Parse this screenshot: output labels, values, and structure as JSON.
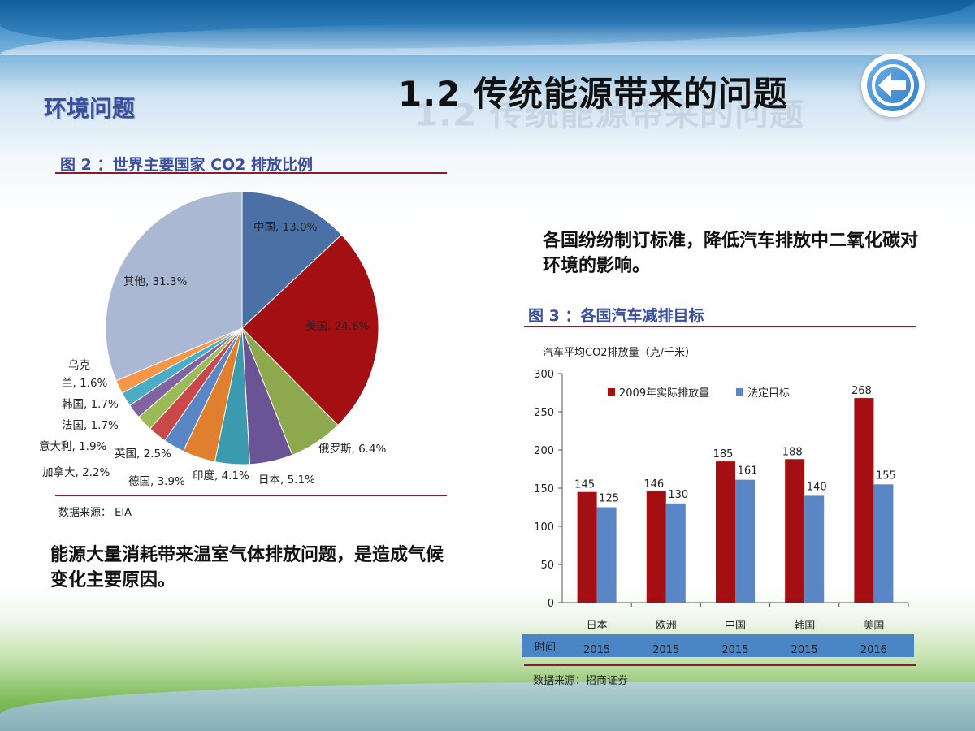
{
  "title": "1.2  传统能源带来的问题",
  "section": "环境问题",
  "left": {
    "fig_title": "图 2 ：世界主要国家 CO2 排放比例",
    "source": "数据来源：  EIA",
    "body": "能源大量消耗带来温室气体排放问题，是造成气候变化主要原因。"
  },
  "right": {
    "body": "各国纷纷制订标准，降低汽车排放中二氧化碳对环境的影响。",
    "fig_title": "图 3 ：各国汽车减排目标",
    "source": "数据来源：招商证券",
    "time_label": "时间"
  },
  "chart_data": [
    {
      "type": "pie",
      "title": "图 2 ：世界主要国家 CO2 排放比例",
      "labels": [
        "中国",
        "美国",
        "俄罗斯",
        "日本",
        "印度",
        "德国",
        "英国",
        "加拿大",
        "意大利",
        "法国",
        "韩国",
        "乌克兰",
        "其他"
      ],
      "values": [
        13.0,
        24.6,
        6.4,
        5.1,
        4.1,
        3.9,
        2.5,
        2.2,
        1.9,
        1.7,
        1.7,
        1.6,
        31.3
      ],
      "display_labels": [
        "中国, 13.0%",
        "美国, 24.6%",
        "俄罗斯, 6.4%",
        "日本, 5.1%",
        "印度, 4.1%",
        "德国, 3.9%",
        "英国, 2.5%",
        "加拿大, 2.2%",
        "意大利, 1.9%",
        "法国, 1.7%",
        "韩国, 1.7%",
        "乌克兰, 1.6%",
        "其他, 31.3%"
      ],
      "colors": [
        "#4a70a5",
        "#a30f12",
        "#8ea94d",
        "#6b5496",
        "#3b9aad",
        "#e07f2e",
        "#5b86c6",
        "#c9484a",
        "#9bbb59",
        "#8064a2",
        "#4aacc6",
        "#f79646",
        "#aab8d4"
      ]
    },
    {
      "type": "bar",
      "title": "图 3 ：各国汽车减排目标",
      "ylabel": "汽车平均CO2排放量（克/千米）",
      "categories": [
        "日本",
        "欧洲",
        "中国",
        "韩国",
        "美国"
      ],
      "years": [
        "2015",
        "2015",
        "2015",
        "2015",
        "2016"
      ],
      "series": [
        {
          "name": "2009年实际排放量",
          "color": "#a30f12",
          "values": [
            145,
            146,
            185,
            188,
            268
          ]
        },
        {
          "name": "法定目标",
          "color": "#5b86c6",
          "values": [
            125,
            130,
            161,
            140,
            155
          ]
        }
      ],
      "ylim": [
        0,
        300
      ],
      "yticks": [
        0,
        50,
        100,
        150,
        200,
        250,
        300
      ]
    }
  ]
}
